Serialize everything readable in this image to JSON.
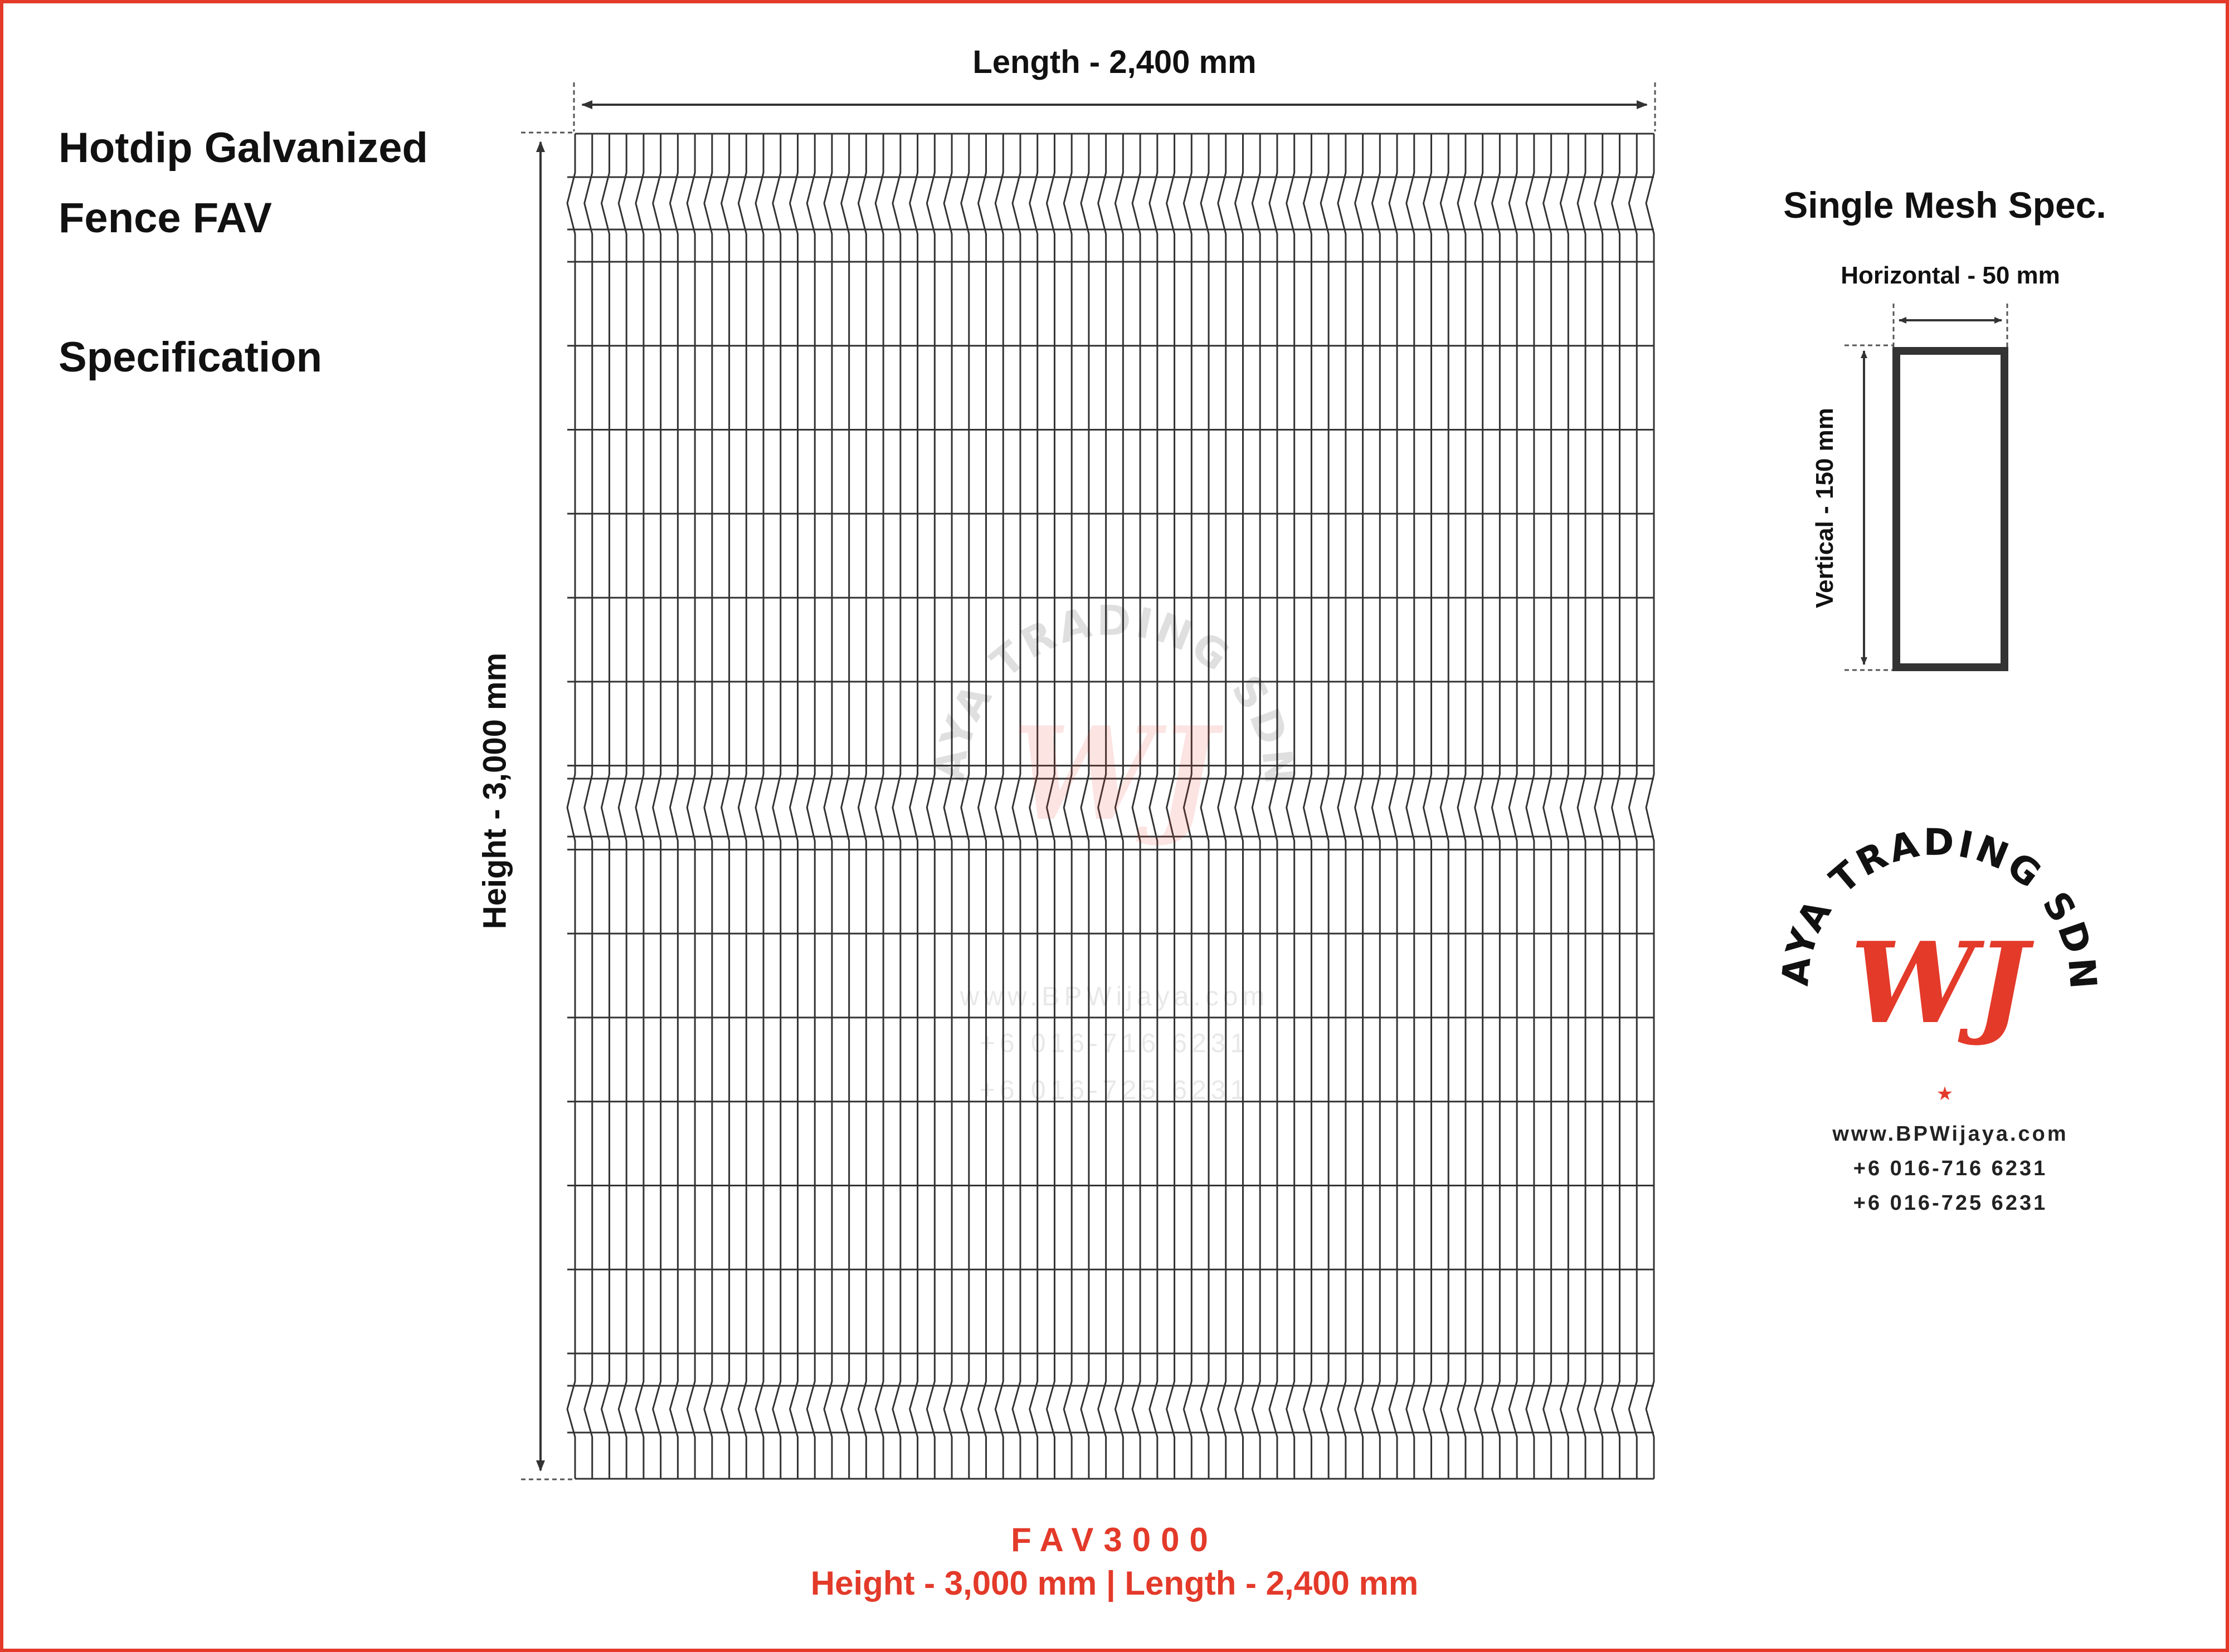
{
  "heading": {
    "line1": "Hotdip Galvanized",
    "line2": "Fence FAV",
    "line3": "Specification"
  },
  "dimensions": {
    "length_label": "Length - 2,400 mm",
    "height_label": "Height - 3,000 mm"
  },
  "mesh_spec": {
    "title": "Single Mesh Spec.",
    "horizontal_label": "Horizontal - 50 mm",
    "vertical_label": "Vertical - 150 mm"
  },
  "fence": {
    "vertical_wires": 64,
    "horizontal_wires": 20,
    "v_bends": 3
  },
  "logo": {
    "ring_text": "BP WIJAYA TRADING SDN. BHD.",
    "monogram": "WJ",
    "website": "www.BPWijaya.com",
    "phone1": "+6 016-716 6231",
    "phone2": "+6 016-725 6231"
  },
  "caption": {
    "model": "FAV3000",
    "dimensions": "Height - 3,000 mm | Length - 2,400 mm"
  },
  "colors": {
    "accent": "#e33a2a",
    "wire": "#333333",
    "frame": "#e33a2a"
  }
}
